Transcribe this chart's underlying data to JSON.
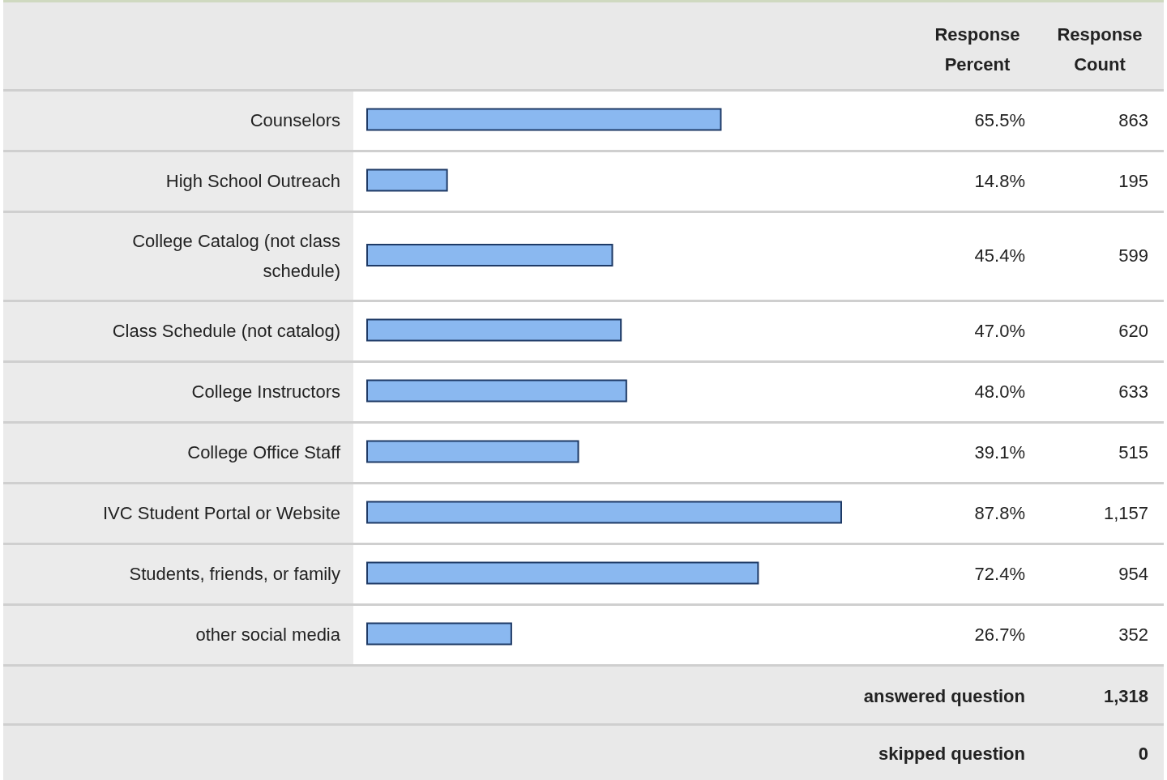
{
  "chart_data": {
    "type": "bar",
    "orientation": "horizontal",
    "categories": [
      "Counselors",
      "High School Outreach",
      "College Catalog (not class schedule)",
      "Class Schedule (not catalog)",
      "College Instructors",
      "College Office Staff",
      "IVC Student Portal or Website",
      "Students, friends, or family",
      "other social media"
    ],
    "values": [
      65.5,
      14.8,
      45.4,
      47.0,
      48.0,
      39.1,
      87.8,
      72.4,
      26.7
    ],
    "value_labels": [
      "65.5%",
      "14.8%",
      "45.4%",
      "47.0%",
      "48.0%",
      "39.1%",
      "87.8%",
      "72.4%",
      "26.7%"
    ],
    "color": "#8ab8f0",
    "annotations": [
      "Response Percent",
      "Response Count",
      "863",
      "195",
      "599",
      "620",
      "633",
      "515",
      "1,157",
      "954",
      "352",
      "answered question",
      "1,318",
      "skipped question",
      "0"
    ]
  }
}
